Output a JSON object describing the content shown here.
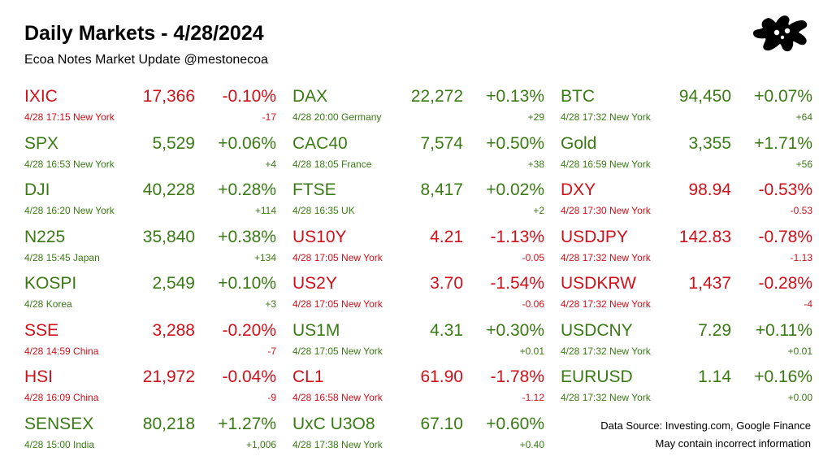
{
  "header": {
    "title": "Daily Markets - 4/28/2024",
    "subtitle": "Ecoa Notes Market Update @mestonecoa"
  },
  "colors": {
    "up": "#3a7a14",
    "down": "#d0101a"
  },
  "columns": [
    [
      {
        "symbol": "IXIC",
        "price": "17,366",
        "pct": "-0.10%",
        "meta": "4/28 17:15 New York",
        "change": "-17",
        "dir": "down"
      },
      {
        "symbol": "SPX",
        "price": "5,529",
        "pct": "+0.06%",
        "meta": "4/28 16:53 New York",
        "change": "+4",
        "dir": "up"
      },
      {
        "symbol": "DJI",
        "price": "40,228",
        "pct": "+0.28%",
        "meta": "4/28 16:20 New York",
        "change": "+114",
        "dir": "up"
      },
      {
        "symbol": "N225",
        "price": "35,840",
        "pct": "+0.38%",
        "meta": "4/28 15:45 Japan",
        "change": "+134",
        "dir": "up"
      },
      {
        "symbol": "KOSPI",
        "price": "2,549",
        "pct": "+0.10%",
        "meta": "4/28  Korea",
        "change": "+3",
        "dir": "up"
      },
      {
        "symbol": "SSE",
        "price": "3,288",
        "pct": "-0.20%",
        "meta": "4/28 14:59 China",
        "change": "-7",
        "dir": "down"
      },
      {
        "symbol": "HSI",
        "price": "21,972",
        "pct": "-0.04%",
        "meta": "4/28 16:09 China",
        "change": "-9",
        "dir": "down"
      },
      {
        "symbol": "SENSEX",
        "price": "80,218",
        "pct": "+1.27%",
        "meta": "4/28 15:00 India",
        "change": "+1,006",
        "dir": "up"
      }
    ],
    [
      {
        "symbol": "DAX",
        "price": "22,272",
        "pct": "+0.13%",
        "meta": "4/28 20:00 Germany",
        "change": "+29",
        "dir": "up"
      },
      {
        "symbol": "CAC40",
        "price": "7,574",
        "pct": "+0.50%",
        "meta": "4/28 18:05 France",
        "change": "+38",
        "dir": "up"
      },
      {
        "symbol": "FTSE",
        "price": "8,417",
        "pct": "+0.02%",
        "meta": "4/28 16:35 UK",
        "change": "+2",
        "dir": "up"
      },
      {
        "symbol": "US10Y",
        "price": "4.21",
        "pct": "-1.13%",
        "meta": "4/28 17:05 New York",
        "change": "-0.05",
        "dir": "down"
      },
      {
        "symbol": "US2Y",
        "price": "3.70",
        "pct": "-1.54%",
        "meta": "4/28 17:05 New York",
        "change": "-0.06",
        "dir": "down"
      },
      {
        "symbol": "US1M",
        "price": "4.31",
        "pct": "+0.30%",
        "meta": "4/28 17:05 New York",
        "change": "+0.01",
        "dir": "up"
      },
      {
        "symbol": "CL1",
        "price": "61.90",
        "pct": "-1.78%",
        "meta": "4/28 16:58 New York",
        "change": "-1.12",
        "dir": "down"
      },
      {
        "symbol": "UxC U3O8",
        "price": "67.10",
        "pct": "+0.60%",
        "meta": "4/28 17:38 New York",
        "change": "+0.40",
        "dir": "up"
      }
    ],
    [
      {
        "symbol": "BTC",
        "price": "94,450",
        "pct": "+0.07%",
        "meta": "4/28 17:32 New York",
        "change": "+64",
        "dir": "up"
      },
      {
        "symbol": "Gold",
        "price": "3,355",
        "pct": "+1.71%",
        "meta": "4/28 16:59 New York",
        "change": "+56",
        "dir": "up"
      },
      {
        "symbol": "DXY",
        "price": "98.94",
        "pct": "-0.53%",
        "meta": "4/28 17:30 New York",
        "change": "-0.53",
        "dir": "down"
      },
      {
        "symbol": "USDJPY",
        "price": "142.83",
        "pct": "-0.78%",
        "meta": "4/28 17:32 New York",
        "change": "-1.13",
        "dir": "down"
      },
      {
        "symbol": "USDKRW",
        "price": "1,437",
        "pct": "-0.28%",
        "meta": "4/28 17:32 New York",
        "change": "-4",
        "dir": "down"
      },
      {
        "symbol": "USDCNY",
        "price": "7.29",
        "pct": "+0.11%",
        "meta": "4/28 17:32 New York",
        "change": "+0.01",
        "dir": "up"
      },
      {
        "symbol": "EURUSD",
        "price": "1.14",
        "pct": "+0.16%",
        "meta": "4/28 17:32 New York",
        "change": "+0.00",
        "dir": "up"
      }
    ]
  ],
  "footer": {
    "source": "Data Source: Investing.com, Google Finance",
    "disclaimer": "May contain incorrect information"
  },
  "logo": {
    "icon": "black-splat-logo"
  }
}
